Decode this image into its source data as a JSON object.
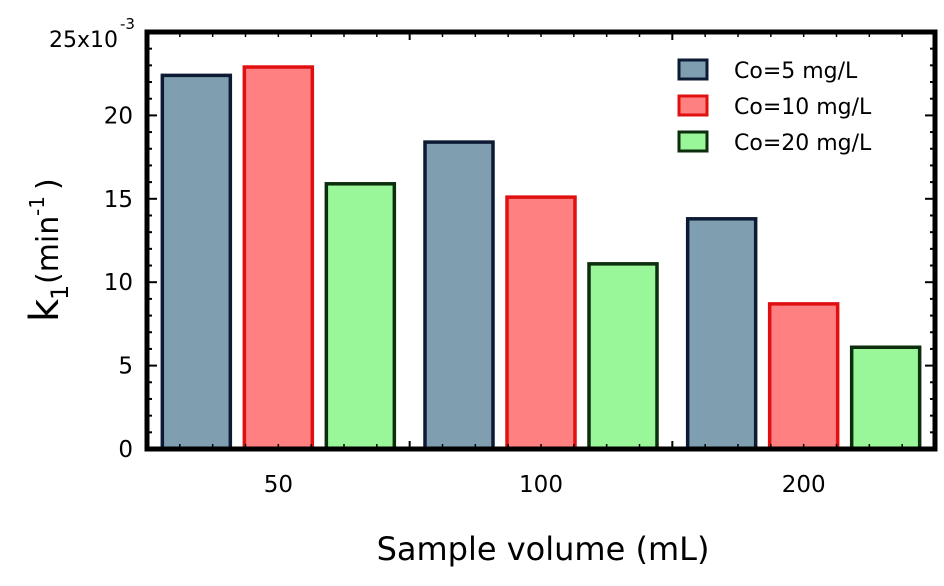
{
  "chart_data": {
    "type": "bar",
    "categories": [
      "50",
      "100",
      "200"
    ],
    "series": [
      {
        "name": "Co=5 mg/L",
        "values": [
          22.4,
          18.4,
          13.8
        ],
        "fill": "#7f9fb0",
        "stroke": "#0d1a33"
      },
      {
        "name": "Co=10 mg/L",
        "values": [
          22.9,
          15.1,
          8.7
        ],
        "fill": "#ff8080",
        "stroke": "#e01010"
      },
      {
        "name": "Co=20 mg/L",
        "values": [
          15.9,
          11.1,
          6.1
        ],
        "fill": "#99f799",
        "stroke": "#0c2e0c"
      }
    ],
    "xlabel": "Sample volume  (mL)",
    "ylabel_main": "k",
    "ylabel_sub": "1",
    "ylabel_unit": "(min",
    "ylabel_exp": "-1",
    "ylabel_close": ")",
    "y_ticks": [
      "0",
      "5",
      "10",
      "15",
      "20"
    ],
    "y_top_label": "25x10",
    "y_top_exp": "-3",
    "ylim": [
      0,
      25
    ],
    "grid": false,
    "legend_position": "top-right"
  }
}
